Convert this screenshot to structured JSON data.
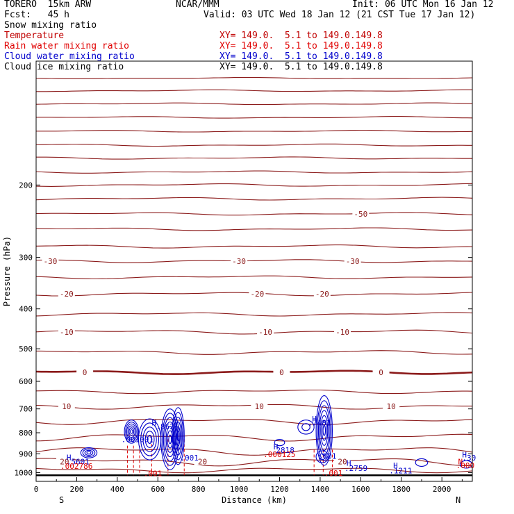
{
  "header": {
    "model": "TORERO  15km ARW",
    "institution": "NCAR/MMM",
    "init": "Init: 06 UTC Mon 16 Jan 12",
    "fcst": "Fcst:   45 h",
    "valid": "Valid: 03 UTC Wed 18 Jan 12 (21 CST Tue 17 Jan 12)"
  },
  "fields": [
    {
      "label": "Snow mixing ratio",
      "xy": "",
      "color": "#000000"
    },
    {
      "label": "Temperature",
      "xy": "XY= 149.0.  5.1 to 149.0.149.8",
      "color": "#c00000"
    },
    {
      "label": "Rain water mixing ratio",
      "xy": "XY= 149.0.  5.1 to 149.0.149.8",
      "color": "#e00000"
    },
    {
      "label": "Cloud water mixing ratio",
      "xy": "XY= 149.0.  5.1 to 149.0.149.8",
      "color": "#0000cc"
    },
    {
      "label": "Cloud ice mixing ratio",
      "xy": "XY= 149.0.  5.1 to 149.0.149.8",
      "color": "#000000"
    }
  ],
  "colors": {
    "temperature": "#8b1a1a",
    "rain": "#e00000",
    "cloud_water": "#0000cc",
    "axis": "#000000"
  },
  "chart_data": {
    "type": "contour-cross-section",
    "xlabel": "Distance (km)",
    "ylabel": "Pressure (hPa)",
    "x_ticks": [
      0,
      200,
      400,
      600,
      800,
      1000,
      1200,
      1400,
      1600,
      1800,
      2000
    ],
    "y_ticks": [
      200,
      300,
      400,
      500,
      600,
      700,
      800,
      900,
      1000
    ],
    "xlim": [
      0,
      2150
    ],
    "ylim": [
      1050,
      100
    ],
    "y_scale": "log",
    "left_end_label": "S",
    "right_end_label": "N",
    "temperature_contours": [
      {
        "p": 110,
        "amp": 3
      },
      {
        "p": 118,
        "amp": 4
      },
      {
        "p": 127,
        "amp": 4
      },
      {
        "p": 137,
        "amp": 4
      },
      {
        "p": 148,
        "amp": 4
      },
      {
        "p": 160,
        "amp": 5
      },
      {
        "p": 172,
        "amp": 5
      },
      {
        "p": 186,
        "amp": 5
      },
      {
        "p": 200,
        "amp": 6
      },
      {
        "p": 216,
        "amp": 6
      },
      {
        "p": 235,
        "amp": 6,
        "label": "-50",
        "label_x": [
          1600
        ]
      },
      {
        "p": 256,
        "amp": 6
      },
      {
        "p": 282,
        "amp": 7
      },
      {
        "p": 306,
        "amp": 7,
        "label": "-30",
        "label_x": [
          70,
          1000,
          1560
        ]
      },
      {
        "p": 335,
        "amp": 7
      },
      {
        "p": 368,
        "amp": 8,
        "label": "-20",
        "label_x": [
          150,
          1090,
          1410
        ]
      },
      {
        "p": 412,
        "amp": 8
      },
      {
        "p": 455,
        "amp": 9,
        "label": "-10",
        "label_x": [
          150,
          1130,
          1510
        ]
      },
      {
        "p": 510,
        "amp": 9
      },
      {
        "p": 570,
        "amp": 8,
        "thick": true,
        "label": "0",
        "label_x": [
          240,
          1210,
          1700
        ]
      },
      {
        "p": 635,
        "amp": 9
      },
      {
        "p": 690,
        "amp": 12,
        "label": "10",
        "label_x": [
          150,
          1100,
          1750
        ]
      },
      {
        "p": 750,
        "amp": 14
      },
      {
        "p": 820,
        "amp": 16
      },
      {
        "p": 885,
        "amp": 18
      },
      {
        "p": 940,
        "amp": 18,
        "label": "20",
        "label_x": [
          140,
          820,
          1510
        ]
      },
      {
        "p": 985,
        "amp": 12
      }
    ],
    "surface_pressure_hpa": 1015,
    "cloud_water_centers": [
      {
        "x": 260,
        "p": 895,
        "rx": 40,
        "rp": 25,
        "rings": 4
      },
      {
        "x": 470,
        "p": 795,
        "rx": 35,
        "rp": 50,
        "rings": 6
      },
      {
        "x": 560,
        "p": 830,
        "rx": 55,
        "rp": 90,
        "rings": 5
      },
      {
        "x": 660,
        "p": 830,
        "rx": 45,
        "rp": 130,
        "rings": 7
      },
      {
        "x": 700,
        "p": 815,
        "rx": 30,
        "rp": 120,
        "rings": 6
      },
      {
        "x": 1420,
        "p": 790,
        "rx": 40,
        "rp": 140,
        "rings": 7
      },
      {
        "x": 1330,
        "p": 775,
        "rx": 40,
        "rp": 30,
        "rings": 2
      },
      {
        "x": 1200,
        "p": 845,
        "rx": 25,
        "rp": 15,
        "rings": 1
      },
      {
        "x": 1410,
        "p": 915,
        "rx": 30,
        "rp": 30,
        "rings": 2
      },
      {
        "x": 1900,
        "p": 945,
        "rx": 30,
        "rp": 20,
        "rings": 1
      },
      {
        "x": 2120,
        "p": 955,
        "rx": 30,
        "rp": 20,
        "rings": 1
      }
    ],
    "rain_columns": [
      {
        "x0": 450,
        "x1": 510,
        "p_top": 860,
        "p_bottom": 1015
      },
      {
        "x0": 570,
        "x1": 730,
        "p_top": 830,
        "p_bottom": 1015
      },
      {
        "x0": 1370,
        "x1": 1460,
        "p_top": 880,
        "p_bottom": 1015
      }
    ],
    "annotations": [
      {
        "text": "H",
        "x": 150,
        "p": 932,
        "color": "#0000cc"
      },
      {
        "text": ".5601",
        "x": 150,
        "p": 955,
        "color": "#0000cc"
      },
      {
        "text": ".002786",
        "x": 120,
        "p": 980,
        "color": "#e00000"
      },
      {
        "text": "H",
        "x": 570,
        "p": 768,
        "color": "#0000cc"
      },
      {
        "text": ".8621",
        "x": 590,
        "p": 784,
        "color": "#0000cc"
      },
      {
        "text": ".001001",
        "x": 420,
        "p": 843,
        "color": "#0000cc"
      },
      {
        "text": ".001",
        "x": 710,
        "p": 935,
        "color": "#0000cc"
      },
      {
        "text": ".001",
        "x": 530,
        "p": 1020,
        "color": "#e00000"
      },
      {
        "text": "H",
        "x": 1170,
        "p": 878,
        "color": "#0000cc"
      },
      {
        "text": ".2818",
        "x": 1160,
        "p": 895,
        "color": "#0000cc"
      },
      {
        "text": ".000125",
        "x": 1120,
        "p": 917,
        "color": "#e00000"
      },
      {
        "text": "H",
        "x": 1360,
        "p": 752,
        "color": "#0000cc"
      },
      {
        "text": ".7481",
        "x": 1340,
        "p": 768,
        "color": "#0000cc"
      },
      {
        "text": ".001",
        "x": 1390,
        "p": 925,
        "color": "#0000cc"
      },
      {
        "text": ".001",
        "x": 1420,
        "p": 1018,
        "color": "#e00000"
      },
      {
        "text": "H",
        "x": 1530,
        "p": 962,
        "color": "#0000cc"
      },
      {
        "text": ".2759",
        "x": 1520,
        "p": 990,
        "color": "#0000cc"
      },
      {
        "text": "H",
        "x": 1760,
        "p": 975,
        "color": "#0000cc"
      },
      {
        "text": ".1211",
        "x": 1740,
        "p": 1005,
        "color": "#0000cc"
      },
      {
        "text": "H",
        "x": 2100,
        "p": 918,
        "color": "#0000cc"
      },
      {
        "text": ".30",
        "x": 2100,
        "p": 935,
        "color": "#0000cc"
      },
      {
        "text": "N",
        "x": 2080,
        "p": 955,
        "color": "#e00000"
      },
      {
        "text": ".000",
        "x": 2070,
        "p": 976,
        "color": "#e00000"
      }
    ]
  }
}
